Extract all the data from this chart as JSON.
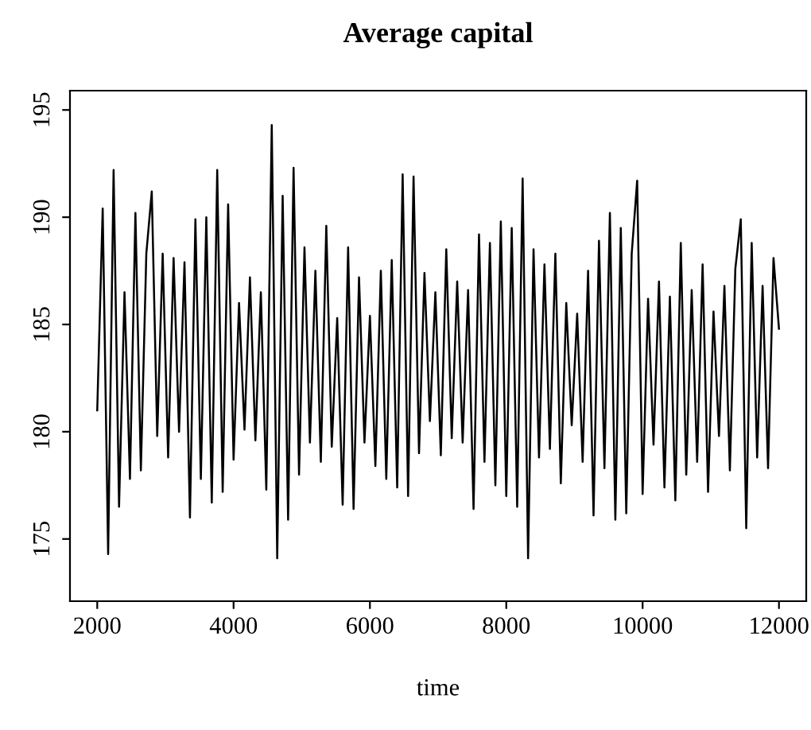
{
  "chart_data": {
    "type": "line",
    "title": "Average capital",
    "xlabel": "time",
    "color": "#000000",
    "xlim": [
      1600,
      12400
    ],
    "ylim": [
      172.1,
      195.9
    ],
    "xticks": [
      2000,
      4000,
      6000,
      8000,
      10000,
      12000
    ],
    "yticks": [
      175,
      180,
      185,
      190,
      195
    ],
    "grid": false,
    "legend": false,
    "marker": "none",
    "line_style": "solid",
    "x": [
      2000,
      2080,
      2160,
      2240,
      2320,
      2400,
      2480,
      2560,
      2640,
      2720,
      2800,
      2880,
      2960,
      3040,
      3120,
      3200,
      3280,
      3360,
      3440,
      3520,
      3600,
      3680,
      3760,
      3840,
      3920,
      4000,
      4080,
      4160,
      4240,
      4320,
      4400,
      4480,
      4560,
      4640,
      4720,
      4800,
      4880,
      4960,
      5040,
      5120,
      5200,
      5280,
      5360,
      5440,
      5520,
      5600,
      5680,
      5760,
      5840,
      5920,
      6000,
      6080,
      6160,
      6240,
      6320,
      6400,
      6480,
      6560,
      6640,
      6720,
      6800,
      6880,
      6960,
      7040,
      7120,
      7200,
      7280,
      7360,
      7440,
      7520,
      7600,
      7680,
      7760,
      7840,
      7920,
      8000,
      8080,
      8160,
      8240,
      8320,
      8400,
      8480,
      8560,
      8640,
      8720,
      8800,
      8880,
      8960,
      9040,
      9120,
      9200,
      9280,
      9360,
      9440,
      9520,
      9600,
      9680,
      9760,
      9840,
      9920,
      10000,
      10080,
      10160,
      10240,
      10320,
      10400,
      10480,
      10560,
      10640,
      10720,
      10800,
      10880,
      10960,
      11040,
      11120,
      11200,
      11280,
      11360,
      11440,
      11520,
      11600,
      11680,
      11760,
      11840,
      11920,
      12000
    ],
    "values": [
      181,
      190.4,
      174.3,
      192.2,
      176.5,
      186.5,
      177.8,
      190.2,
      178.2,
      188.3,
      191.2,
      179.8,
      188.3,
      178.8,
      188.1,
      180.0,
      187.9,
      176.0,
      189.9,
      177.8,
      190.0,
      176.7,
      192.2,
      177.2,
      190.6,
      178.7,
      186.0,
      180.1,
      187.2,
      179.6,
      186.5,
      177.3,
      194.3,
      174.1,
      191.0,
      175.9,
      192.3,
      178.0,
      188.6,
      179.5,
      187.5,
      178.6,
      189.6,
      179.3,
      185.3,
      176.6,
      188.6,
      176.4,
      187.2,
      179.5,
      185.4,
      178.4,
      187.5,
      177.8,
      188.0,
      177.4,
      192.0,
      177.0,
      191.9,
      179.0,
      187.4,
      180.5,
      186.5,
      178.9,
      188.5,
      179.7,
      187.0,
      179.5,
      186.6,
      176.4,
      189.2,
      178.6,
      188.8,
      177.5,
      189.8,
      177.0,
      189.5,
      176.5,
      191.8,
      174.1,
      188.5,
      178.8,
      187.8,
      179.2,
      188.3,
      177.6,
      186.0,
      180.3,
      185.5,
      178.6,
      187.5,
      176.1,
      188.9,
      178.3,
      190.2,
      175.9,
      189.5,
      176.2,
      188.3,
      191.7,
      177.1,
      186.2,
      179.4,
      187.0,
      177.4,
      186.3,
      176.8,
      188.8,
      178.0,
      186.6,
      178.6,
      187.8,
      177.2,
      185.6,
      179.8,
      186.8,
      178.2,
      187.6,
      189.9,
      175.5,
      188.8,
      178.8,
      186.8,
      178.3,
      188.1,
      184.8
    ]
  }
}
